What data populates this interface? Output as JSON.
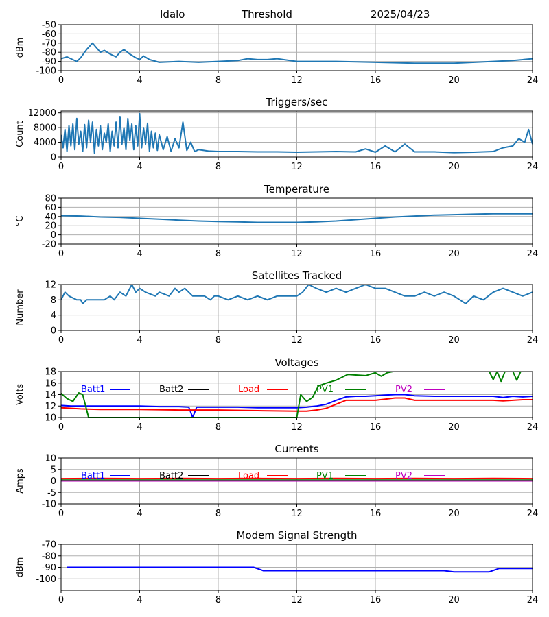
{
  "header": {
    "station": "Idalo",
    "label": "Threshold",
    "date": "2025/04/23"
  },
  "colors": {
    "series_default": "#1f77b4",
    "batt1": "#0000ff",
    "batt2": "#000000",
    "load": "#ff0000",
    "pv1": "#008000",
    "pv2": "#bf00bf",
    "grid": "#b0b0b0"
  },
  "chart_data": [
    {
      "id": "threshold",
      "type": "line",
      "title": "",
      "xlabel": "",
      "ylabel": "dBm",
      "xlim": [
        0,
        24
      ],
      "ylim": [
        -100,
        -50
      ],
      "xticks": [
        0,
        4,
        8,
        12,
        16,
        20,
        24
      ],
      "yticks": [
        -100,
        -90,
        -80,
        -70,
        -60,
        -50
      ],
      "grid": true,
      "series": [
        {
          "name": "",
          "color": "#1f77b4",
          "x": [
            0,
            0.3,
            0.5,
            0.8,
            1.0,
            1.3,
            1.6,
            1.8,
            2.0,
            2.2,
            2.5,
            2.8,
            3.0,
            3.2,
            3.5,
            3.8,
            4.0,
            4.2,
            4.5,
            5.0,
            6.0,
            7.0,
            8.0,
            9.0,
            9.5,
            10.0,
            10.5,
            11.0,
            12.0,
            14.0,
            16.0,
            18.0,
            20.0,
            22.0,
            23.0,
            24.0
          ],
          "y": [
            -87,
            -85,
            -87,
            -90,
            -86,
            -77,
            -70,
            -75,
            -80,
            -78,
            -82,
            -85,
            -80,
            -77,
            -82,
            -86,
            -88,
            -84,
            -88,
            -91,
            -90,
            -91,
            -90,
            -89,
            -87,
            -88,
            -88,
            -87,
            -90,
            -90,
            -91,
            -92,
            -92,
            -90,
            -89,
            -87
          ]
        }
      ]
    },
    {
      "id": "triggers",
      "type": "line",
      "title": "Triggers/sec",
      "xlabel": "",
      "ylabel": "Count",
      "xlim": [
        0,
        24
      ],
      "ylim": [
        0,
        12500
      ],
      "xticks": [
        0,
        4,
        8,
        12,
        16,
        20,
        24
      ],
      "yticks": [
        0,
        4000,
        8000,
        12000
      ],
      "grid": true,
      "series": [
        {
          "name": "",
          "color": "#1f77b4",
          "x": [
            0,
            0.1,
            0.2,
            0.3,
            0.4,
            0.5,
            0.6,
            0.7,
            0.8,
            0.9,
            1.0,
            1.1,
            1.2,
            1.3,
            1.4,
            1.5,
            1.6,
            1.7,
            1.8,
            1.9,
            2.0,
            2.1,
            2.2,
            2.3,
            2.4,
            2.5,
            2.6,
            2.7,
            2.8,
            2.9,
            3.0,
            3.1,
            3.2,
            3.3,
            3.4,
            3.5,
            3.6,
            3.7,
            3.8,
            3.9,
            4.0,
            4.1,
            4.2,
            4.3,
            4.4,
            4.5,
            4.6,
            4.7,
            4.8,
            4.9,
            5.0,
            5.2,
            5.4,
            5.6,
            5.8,
            6.0,
            6.2,
            6.4,
            6.6,
            6.8,
            7.0,
            7.5,
            8.0,
            9.0,
            10.0,
            11.0,
            12.0,
            13.0,
            14.0,
            15.0,
            15.5,
            16.0,
            16.5,
            17.0,
            17.5,
            18.0,
            19.0,
            20.0,
            21.0,
            22.0,
            22.5,
            23.0,
            23.3,
            23.6,
            23.8,
            24.0
          ],
          "y": [
            6000,
            2500,
            7500,
            1500,
            8500,
            3000,
            9000,
            2000,
            10500,
            3500,
            7000,
            1500,
            8800,
            2500,
            10000,
            4000,
            9500,
            1000,
            7500,
            3000,
            8500,
            2000,
            6500,
            4000,
            9000,
            1500,
            7000,
            3000,
            9500,
            2500,
            11000,
            3500,
            8000,
            2000,
            10500,
            4500,
            9000,
            2000,
            8500,
            3000,
            11800,
            2500,
            8000,
            3500,
            9200,
            1500,
            7000,
            2500,
            6500,
            1800,
            6000,
            2000,
            5500,
            1500,
            5000,
            2500,
            9500,
            1800,
            4000,
            1500,
            2000,
            1600,
            1500,
            1500,
            1400,
            1400,
            1300,
            1400,
            1500,
            1400,
            2200,
            1300,
            3000,
            1400,
            3500,
            1400,
            1400,
            1200,
            1300,
            1500,
            2500,
            3000,
            5000,
            4000,
            7500,
            3500
          ]
        }
      ]
    },
    {
      "id": "temperature",
      "type": "line",
      "title": "Temperature",
      "xlabel": "",
      "ylabel": "°C",
      "xlim": [
        0,
        24
      ],
      "ylim": [
        -20,
        80
      ],
      "xticks": [
        0,
        4,
        8,
        12,
        16,
        20,
        24
      ],
      "yticks": [
        -20,
        0,
        20,
        40,
        60,
        80
      ],
      "grid": true,
      "series": [
        {
          "name": "",
          "color": "#1f77b4",
          "x": [
            0,
            1,
            2,
            3,
            4,
            5,
            6,
            7,
            8,
            9,
            10,
            11,
            12,
            13,
            14,
            15,
            16,
            17,
            18,
            19,
            20,
            21,
            22,
            23,
            24
          ],
          "y": [
            42,
            41,
            39,
            38,
            36,
            34,
            32,
            30,
            29,
            28,
            27,
            27,
            27,
            28,
            30,
            33,
            36,
            39,
            41,
            43,
            44,
            45,
            46,
            46,
            46
          ]
        }
      ]
    },
    {
      "id": "satellites",
      "type": "line",
      "title": "Satellites Tracked",
      "xlabel": "",
      "ylabel": "Number",
      "xlim": [
        0,
        24
      ],
      "ylim": [
        0,
        12
      ],
      "xticks": [
        0,
        4,
        8,
        12,
        16,
        20,
        24
      ],
      "yticks": [
        0,
        4,
        8,
        12
      ],
      "grid": true,
      "series": [
        {
          "name": "",
          "color": "#1f77b4",
          "x": [
            0,
            0.2,
            0.4,
            0.8,
            1.0,
            1.1,
            1.3,
            1.5,
            1.8,
            2.2,
            2.5,
            2.7,
            3.0,
            3.3,
            3.5,
            3.6,
            3.8,
            4.0,
            4.3,
            4.8,
            5.0,
            5.5,
            5.8,
            6.0,
            6.3,
            6.7,
            7.0,
            7.3,
            7.6,
            7.8,
            8.0,
            8.5,
            9.0,
            9.5,
            10.0,
            10.5,
            11.0,
            11.5,
            12.0,
            12.3,
            12.6,
            13.0,
            13.5,
            14.0,
            14.5,
            15.0,
            15.5,
            16.0,
            16.5,
            17.0,
            17.5,
            18.0,
            18.5,
            19.0,
            19.5,
            20.0,
            20.3,
            20.6,
            21.0,
            21.5,
            22.0,
            22.5,
            23.0,
            23.5,
            24.0
          ],
          "y": [
            8,
            10,
            9,
            8,
            8,
            7,
            8,
            8,
            8,
            8,
            9,
            8,
            10,
            9,
            11,
            12,
            10,
            11,
            10,
            9,
            10,
            9,
            11,
            10,
            11,
            9,
            9,
            9,
            8,
            9,
            9,
            8,
            9,
            8,
            9,
            8,
            9,
            9,
            9,
            10,
            12,
            11,
            10,
            11,
            10,
            11,
            12,
            11,
            11,
            10,
            9,
            9,
            10,
            9,
            10,
            9,
            8,
            7,
            9,
            8,
            10,
            11,
            10,
            9,
            10
          ]
        }
      ]
    },
    {
      "id": "voltages",
      "type": "line",
      "title": "Voltages",
      "xlabel": "",
      "ylabel": "Volts",
      "xlim": [
        0,
        24
      ],
      "ylim": [
        10,
        18
      ],
      "xticks": [
        0,
        4,
        8,
        12,
        16,
        20,
        24
      ],
      "yticks": [
        10,
        12,
        14,
        16,
        18
      ],
      "grid": true,
      "legend": "top",
      "series": [
        {
          "name": "Batt1",
          "color": "#0000ff",
          "x": [
            0,
            0.5,
            1,
            2,
            3,
            4,
            5,
            6,
            6.5,
            6.7,
            6.9,
            7.0,
            8,
            9,
            10,
            11,
            12,
            12.5,
            13,
            13.5,
            14,
            14.5,
            15,
            15.5,
            16,
            16.5,
            17,
            17.5,
            18,
            19,
            20,
            21,
            22,
            22.5,
            23,
            23.5,
            24
          ],
          "y": [
            12.1,
            12.0,
            12.0,
            12.0,
            12.0,
            12.0,
            11.9,
            11.9,
            11.8,
            10.0,
            11.8,
            11.8,
            11.8,
            11.8,
            11.7,
            11.7,
            11.7,
            11.8,
            12.0,
            12.3,
            13.0,
            13.6,
            13.7,
            13.7,
            13.8,
            13.9,
            14.0,
            14.0,
            13.8,
            13.7,
            13.7,
            13.7,
            13.7,
            13.5,
            13.7,
            13.6,
            13.7
          ]
        },
        {
          "name": "Batt2",
          "color": "#000000",
          "x": [],
          "y": []
        },
        {
          "name": "Load",
          "color": "#ff0000",
          "x": [
            0,
            1,
            2,
            4,
            6,
            8,
            10,
            12,
            12.5,
            13,
            13.5,
            14,
            14.5,
            15,
            15.5,
            16,
            16.5,
            17,
            17.5,
            18,
            19,
            20,
            22,
            22.5,
            23,
            23.5,
            24
          ],
          "y": [
            11.7,
            11.5,
            11.4,
            11.4,
            11.3,
            11.3,
            11.2,
            11.1,
            11.1,
            11.3,
            11.6,
            12.3,
            13.0,
            13.0,
            13.0,
            13.0,
            13.2,
            13.4,
            13.4,
            13.0,
            13.0,
            13.0,
            13.0,
            12.9,
            13.0,
            13.1,
            13.1
          ]
        },
        {
          "name": "PV1",
          "color": "#008000",
          "x": [
            0,
            0.3,
            0.6,
            0.9,
            1.1,
            1.4,
            12.0,
            12.2,
            12.5,
            12.8,
            13.1,
            13.5,
            14.0,
            14.3,
            14.6,
            15.0,
            15.5,
            16.0,
            16.3,
            16.6,
            16.9,
            21.8,
            22.0,
            22.2,
            22.4,
            22.6,
            22.8,
            23.0,
            23.2,
            23.4
          ],
          "y": [
            14.2,
            13.3,
            12.8,
            14.3,
            14.0,
            10.0,
            10.0,
            14.0,
            12.8,
            13.5,
            15.5,
            16.0,
            16.5,
            17.0,
            17.5,
            17.4,
            17.3,
            17.8,
            17.2,
            17.8,
            18.0,
            18.0,
            16.6,
            18.0,
            16.3,
            18.0,
            18.0,
            18.0,
            16.5,
            18.0
          ]
        },
        {
          "name": "PV2",
          "color": "#bf00bf",
          "x": [],
          "y": []
        }
      ]
    },
    {
      "id": "currents",
      "type": "line",
      "title": "Currents",
      "xlabel": "",
      "ylabel": "Amps",
      "xlim": [
        0,
        24
      ],
      "ylim": [
        -10,
        10
      ],
      "xticks": [
        0,
        4,
        8,
        12,
        16,
        20,
        24
      ],
      "yticks": [
        -10,
        -5,
        0,
        5,
        10
      ],
      "grid": true,
      "legend": "top",
      "series": [
        {
          "name": "Batt1",
          "color": "#0000ff",
          "x": [
            0,
            6,
            12,
            18,
            24
          ],
          "y": [
            0.1,
            0.1,
            0.1,
            0.1,
            0.1
          ]
        },
        {
          "name": "Batt2",
          "color": "#000000",
          "x": [],
          "y": []
        },
        {
          "name": "Load",
          "color": "#ff0000",
          "x": [
            0,
            2,
            4,
            6,
            8,
            10,
            12,
            14,
            16,
            18,
            20,
            22,
            24
          ],
          "y": [
            1.0,
            1.1,
            1.0,
            1.1,
            1.0,
            1.1,
            1.0,
            1.1,
            1.0,
            1.1,
            1.0,
            1.1,
            1.0
          ]
        },
        {
          "name": "PV1",
          "color": "#008000",
          "x": [
            0,
            24
          ],
          "y": [
            0.4,
            0.4
          ]
        },
        {
          "name": "PV2",
          "color": "#bf00bf",
          "x": [
            0,
            24
          ],
          "y": [
            0.0,
            0.0
          ]
        }
      ]
    },
    {
      "id": "modem",
      "type": "line",
      "title": "Modem Signal Strength",
      "xlabel": "",
      "ylabel": "dBm",
      "xlim": [
        0,
        24
      ],
      "ylim": [
        -110,
        -70
      ],
      "xticks": [
        0,
        4,
        8,
        12,
        16,
        20,
        24
      ],
      "yticks": [
        -100,
        -90,
        -80,
        -70
      ],
      "grid": true,
      "series": [
        {
          "name": "",
          "color": "#0000ff",
          "x": [
            0.3,
            9.8,
            10.3,
            19.5,
            20.0,
            21.8,
            22.3,
            24.0
          ],
          "y": [
            -90,
            -90,
            -93,
            -93,
            -94,
            -94,
            -91,
            -91
          ]
        }
      ]
    }
  ]
}
